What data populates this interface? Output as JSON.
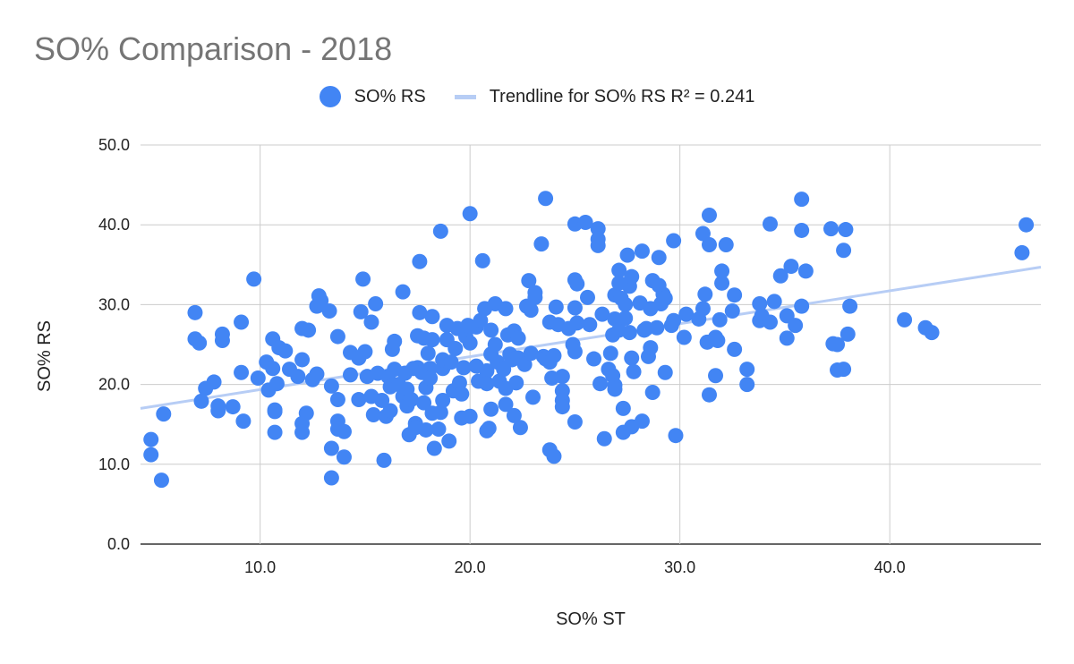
{
  "chart_data": {
    "type": "scatter",
    "title": "SO% Comparison - 2018",
    "xlabel": "SO% ST",
    "ylabel": "SO% RS",
    "xlim": [
      4.3,
      47.2
    ],
    "ylim": [
      0,
      50
    ],
    "xticks": [
      "10.0",
      "20.0",
      "30.0",
      "40.0"
    ],
    "xtick_values": [
      10,
      20,
      30,
      40
    ],
    "yticks": [
      "0.0",
      "10.0",
      "20.0",
      "30.0",
      "40.0",
      "50.0"
    ],
    "ytick_values": [
      0,
      10,
      20,
      30,
      40,
      50
    ],
    "grid": true,
    "legend_position": "top",
    "series": [
      {
        "name": "SO% RS",
        "color": "#4285F4",
        "points": [
          [
            4.8,
            13.1
          ],
          [
            4.8,
            11.2
          ],
          [
            5.3,
            8.0
          ],
          [
            5.4,
            16.3
          ],
          [
            6.9,
            29.0
          ],
          [
            6.9,
            25.7
          ],
          [
            7.1,
            25.2
          ],
          [
            7.2,
            17.9
          ],
          [
            7.4,
            19.5
          ],
          [
            7.8,
            20.3
          ],
          [
            8.0,
            16.7
          ],
          [
            8.0,
            17.3
          ],
          [
            8.2,
            25.5
          ],
          [
            8.2,
            26.3
          ],
          [
            8.7,
            17.2
          ],
          [
            9.1,
            21.5
          ],
          [
            9.1,
            27.8
          ],
          [
            9.2,
            15.4
          ],
          [
            9.7,
            33.2
          ],
          [
            9.9,
            20.8
          ],
          [
            10.3,
            22.8
          ],
          [
            10.4,
            19.3
          ],
          [
            10.6,
            25.7
          ],
          [
            10.6,
            22.0
          ],
          [
            10.7,
            14.0
          ],
          [
            10.7,
            16.6
          ],
          [
            10.7,
            16.8
          ],
          [
            10.8,
            20.1
          ],
          [
            10.9,
            24.6
          ],
          [
            11.2,
            24.2
          ],
          [
            11.4,
            21.9
          ],
          [
            11.8,
            21.0
          ],
          [
            12.0,
            27.0
          ],
          [
            12.0,
            23.1
          ],
          [
            12.0,
            15.1
          ],
          [
            12.0,
            14.0
          ],
          [
            12.2,
            16.4
          ],
          [
            12.3,
            26.8
          ],
          [
            12.5,
            20.6
          ],
          [
            12.7,
            29.8
          ],
          [
            12.7,
            21.3
          ],
          [
            12.8,
            31.1
          ],
          [
            12.9,
            30.5
          ],
          [
            13.3,
            29.2
          ],
          [
            13.4,
            12.0
          ],
          [
            13.4,
            19.8
          ],
          [
            13.4,
            8.3
          ],
          [
            13.7,
            15.4
          ],
          [
            13.7,
            14.4
          ],
          [
            13.7,
            18.1
          ],
          [
            13.7,
            26.0
          ],
          [
            14.0,
            14.1
          ],
          [
            14.0,
            10.9
          ],
          [
            14.3,
            24.0
          ],
          [
            14.3,
            21.2
          ],
          [
            14.7,
            23.3
          ],
          [
            14.7,
            18.1
          ],
          [
            14.8,
            29.1
          ],
          [
            14.9,
            33.2
          ],
          [
            15.0,
            24.1
          ],
          [
            15.1,
            21.0
          ],
          [
            15.3,
            27.8
          ],
          [
            15.3,
            18.5
          ],
          [
            15.4,
            16.2
          ],
          [
            15.5,
            30.1
          ],
          [
            15.6,
            21.4
          ],
          [
            15.8,
            18.0
          ],
          [
            15.9,
            10.5
          ],
          [
            16.0,
            16.0
          ],
          [
            16.1,
            21.0
          ],
          [
            16.2,
            19.7
          ],
          [
            16.2,
            16.7
          ],
          [
            16.3,
            24.4
          ],
          [
            16.4,
            25.4
          ],
          [
            16.4,
            21.9
          ],
          [
            16.6,
            20.0
          ],
          [
            16.8,
            31.6
          ],
          [
            16.8,
            18.5
          ],
          [
            16.9,
            21.4
          ],
          [
            17.0,
            19.4
          ],
          [
            17.0,
            17.3
          ],
          [
            17.1,
            13.7
          ],
          [
            17.2,
            18.1
          ],
          [
            17.3,
            22.0
          ],
          [
            17.4,
            15.1
          ],
          [
            17.4,
            14.6
          ],
          [
            17.5,
            26.1
          ],
          [
            17.5,
            22.1
          ],
          [
            17.6,
            29.0
          ],
          [
            17.6,
            35.4
          ],
          [
            17.7,
            21.5
          ],
          [
            17.8,
            25.8
          ],
          [
            17.8,
            17.7
          ],
          [
            17.9,
            14.3
          ],
          [
            17.9,
            19.6
          ],
          [
            18.0,
            23.9
          ],
          [
            18.1,
            22.0
          ],
          [
            18.1,
            20.8
          ],
          [
            18.2,
            25.6
          ],
          [
            18.2,
            28.5
          ],
          [
            18.2,
            16.4
          ],
          [
            18.3,
            12.0
          ],
          [
            18.5,
            14.4
          ],
          [
            18.6,
            39.2
          ],
          [
            18.6,
            16.5
          ],
          [
            18.7,
            22.0
          ],
          [
            18.7,
            23.1
          ],
          [
            18.7,
            18.0
          ],
          [
            18.9,
            27.4
          ],
          [
            18.9,
            25.6
          ],
          [
            19.0,
            12.9
          ],
          [
            19.1,
            22.8
          ],
          [
            19.2,
            19.2
          ],
          [
            19.3,
            24.5
          ],
          [
            19.4,
            27.0
          ],
          [
            19.5,
            20.2
          ],
          [
            19.6,
            15.8
          ],
          [
            19.6,
            18.8
          ],
          [
            19.7,
            22.1
          ],
          [
            19.8,
            26.0
          ],
          [
            19.9,
            27.4
          ],
          [
            20.0,
            41.4
          ],
          [
            20.0,
            25.2
          ],
          [
            20.0,
            16.0
          ],
          [
            20.3,
            27.2
          ],
          [
            20.3,
            22.3
          ],
          [
            20.4,
            20.4
          ],
          [
            20.5,
            28.0
          ],
          [
            20.6,
            35.5
          ],
          [
            20.7,
            29.5
          ],
          [
            20.8,
            21.7
          ],
          [
            20.8,
            20.1
          ],
          [
            20.8,
            14.2
          ],
          [
            20.9,
            14.5
          ],
          [
            21.0,
            23.8
          ],
          [
            21.0,
            26.8
          ],
          [
            21.0,
            16.9
          ],
          [
            21.2,
            30.1
          ],
          [
            21.2,
            25.0
          ],
          [
            21.3,
            22.8
          ],
          [
            21.4,
            20.4
          ],
          [
            21.6,
            21.9
          ],
          [
            21.7,
            29.5
          ],
          [
            21.7,
            19.5
          ],
          [
            21.7,
            17.5
          ],
          [
            21.8,
            26.2
          ],
          [
            21.9,
            23.8
          ],
          [
            22.0,
            23.1
          ],
          [
            22.1,
            26.7
          ],
          [
            22.1,
            16.1
          ],
          [
            22.2,
            20.2
          ],
          [
            22.3,
            25.8
          ],
          [
            22.3,
            23.3
          ],
          [
            22.4,
            14.6
          ],
          [
            22.6,
            22.5
          ],
          [
            22.7,
            29.8
          ],
          [
            22.8,
            33.0
          ],
          [
            22.9,
            29.3
          ],
          [
            22.9,
            23.9
          ],
          [
            23.0,
            18.4
          ],
          [
            23.1,
            30.9
          ],
          [
            23.1,
            31.5
          ],
          [
            23.4,
            37.6
          ],
          [
            23.5,
            23.5
          ],
          [
            23.6,
            43.3
          ],
          [
            23.6,
            23.2
          ],
          [
            23.8,
            27.8
          ],
          [
            23.8,
            22.8
          ],
          [
            23.8,
            11.8
          ],
          [
            23.9,
            20.8
          ],
          [
            24.0,
            11.0
          ],
          [
            24.0,
            23.6
          ],
          [
            24.1,
            29.7
          ],
          [
            24.2,
            27.5
          ],
          [
            24.4,
            21.0
          ],
          [
            24.4,
            19.2
          ],
          [
            24.4,
            18.0
          ],
          [
            24.4,
            17.2
          ],
          [
            24.7,
            27.0
          ],
          [
            24.9,
            25.0
          ],
          [
            25.0,
            33.1
          ],
          [
            25.0,
            29.6
          ],
          [
            25.0,
            24.1
          ],
          [
            25.0,
            15.3
          ],
          [
            25.0,
            40.1
          ],
          [
            25.1,
            32.6
          ],
          [
            25.1,
            27.7
          ],
          [
            25.5,
            40.3
          ],
          [
            25.6,
            30.9
          ],
          [
            25.7,
            27.5
          ],
          [
            25.9,
            23.2
          ],
          [
            26.1,
            39.5
          ],
          [
            26.1,
            38.2
          ],
          [
            26.1,
            37.4
          ],
          [
            26.2,
            20.1
          ],
          [
            26.3,
            28.8
          ],
          [
            26.4,
            13.2
          ],
          [
            26.6,
            21.9
          ],
          [
            26.7,
            23.9
          ],
          [
            26.8,
            26.2
          ],
          [
            26.8,
            21.1
          ],
          [
            26.9,
            28.2
          ],
          [
            26.9,
            31.2
          ],
          [
            26.9,
            19.9
          ],
          [
            26.9,
            19.4
          ],
          [
            27.1,
            34.3
          ],
          [
            27.1,
            32.7
          ],
          [
            27.1,
            26.8
          ],
          [
            27.2,
            30.8
          ],
          [
            27.3,
            17.0
          ],
          [
            27.3,
            14.0
          ],
          [
            27.4,
            28.3
          ],
          [
            27.4,
            30.0
          ],
          [
            27.5,
            36.2
          ],
          [
            27.6,
            26.5
          ],
          [
            27.6,
            32.3
          ],
          [
            27.7,
            33.5
          ],
          [
            27.7,
            23.3
          ],
          [
            27.7,
            14.7
          ],
          [
            27.8,
            21.6
          ],
          [
            28.1,
            30.2
          ],
          [
            28.2,
            36.7
          ],
          [
            28.2,
            15.4
          ],
          [
            28.3,
            26.8
          ],
          [
            28.4,
            27.0
          ],
          [
            28.5,
            23.5
          ],
          [
            28.6,
            29.5
          ],
          [
            28.6,
            24.6
          ],
          [
            28.7,
            33.0
          ],
          [
            28.7,
            19.0
          ],
          [
            28.9,
            27.1
          ],
          [
            29.0,
            35.9
          ],
          [
            29.0,
            32.4
          ],
          [
            29.1,
            30.1
          ],
          [
            29.2,
            31.3
          ],
          [
            29.3,
            30.8
          ],
          [
            29.3,
            21.5
          ],
          [
            29.6,
            27.4
          ],
          [
            29.7,
            38.0
          ],
          [
            29.7,
            28.0
          ],
          [
            29.8,
            13.6
          ],
          [
            30.2,
            25.9
          ],
          [
            30.3,
            28.8
          ],
          [
            30.9,
            28.2
          ],
          [
            31.1,
            29.5
          ],
          [
            31.1,
            38.9
          ],
          [
            31.2,
            31.3
          ],
          [
            31.3,
            25.3
          ],
          [
            31.4,
            41.2
          ],
          [
            31.4,
            18.7
          ],
          [
            31.4,
            37.5
          ],
          [
            31.7,
            21.1
          ],
          [
            31.7,
            25.9
          ],
          [
            31.8,
            25.5
          ],
          [
            31.9,
            28.1
          ],
          [
            32.0,
            32.7
          ],
          [
            32.0,
            34.2
          ],
          [
            32.2,
            37.5
          ],
          [
            32.5,
            29.2
          ],
          [
            32.6,
            31.2
          ],
          [
            32.6,
            24.4
          ],
          [
            33.2,
            21.9
          ],
          [
            33.2,
            20.0
          ],
          [
            33.8,
            30.1
          ],
          [
            33.8,
            28.0
          ],
          [
            33.9,
            28.6
          ],
          [
            34.3,
            40.1
          ],
          [
            34.3,
            27.8
          ],
          [
            34.5,
            30.4
          ],
          [
            34.8,
            33.6
          ],
          [
            35.1,
            28.6
          ],
          [
            35.1,
            25.8
          ],
          [
            35.3,
            34.8
          ],
          [
            35.5,
            27.4
          ],
          [
            35.8,
            43.2
          ],
          [
            35.8,
            39.3
          ],
          [
            35.8,
            29.8
          ],
          [
            36.0,
            34.2
          ],
          [
            37.2,
            39.5
          ],
          [
            37.3,
            25.1
          ],
          [
            37.5,
            25.0
          ],
          [
            37.5,
            21.8
          ],
          [
            37.8,
            36.8
          ],
          [
            37.8,
            21.9
          ],
          [
            37.9,
            39.4
          ],
          [
            38.0,
            26.3
          ],
          [
            38.1,
            29.8
          ],
          [
            40.7,
            28.1
          ],
          [
            41.7,
            27.1
          ],
          [
            42.0,
            26.5
          ],
          [
            46.3,
            36.5
          ],
          [
            46.5,
            40.0
          ]
        ]
      },
      {
        "name": "Trendline for SO% RS R² = 0.241",
        "color": "#B7CDF5",
        "kind": "trendline",
        "line": [
          [
            4.3,
            17.0
          ],
          [
            47.2,
            34.7
          ]
        ]
      }
    ]
  }
}
